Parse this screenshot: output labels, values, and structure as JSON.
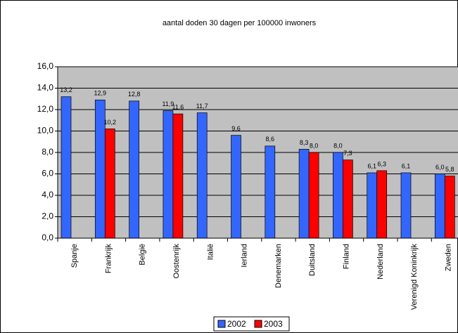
{
  "chart_data": {
    "type": "bar",
    "title": "aantal doden 30 dagen per 100000 inwoners",
    "categories": [
      "Spanje",
      "Frankrijk",
      "België",
      "Oostenrijk",
      "Italië",
      "Ierland",
      "Denemarken",
      "Duitsland",
      "Finland",
      "Nederland",
      "Verenigd Koninkrijk",
      "Zweden"
    ],
    "series": [
      {
        "name": "2002",
        "color": "#3366ff",
        "values": [
          13.2,
          12.9,
          12.8,
          11.9,
          11.7,
          9.6,
          8.6,
          8.3,
          8.0,
          6.1,
          6.1,
          6.0
        ],
        "value_labels": [
          "13,2",
          "12,9",
          "12,8",
          "11,9",
          "11,7",
          "9,6",
          "8,6",
          "8,3",
          "8,0",
          "6,1",
          "6,1",
          "6,0"
        ]
      },
      {
        "name": "2003",
        "color": "#ff0000",
        "values": [
          null,
          10.2,
          null,
          11.6,
          null,
          null,
          null,
          8.0,
          7.3,
          6.3,
          null,
          5.8
        ],
        "value_labels": [
          null,
          "10,2",
          null,
          "11,6",
          null,
          null,
          null,
          "8,0",
          "7,3",
          "6,3",
          null,
          "5,8"
        ]
      }
    ],
    "ylim": [
      0,
      16
    ],
    "yticks": [
      {
        "value": 0,
        "label": "0,0"
      },
      {
        "value": 2,
        "label": "2,0"
      },
      {
        "value": 4,
        "label": "4,0"
      },
      {
        "value": 6,
        "label": "6,0"
      },
      {
        "value": 8,
        "label": "8,0"
      },
      {
        "value": 10,
        "label": "10,0"
      },
      {
        "value": 12,
        "label": "12,0"
      },
      {
        "value": 14,
        "label": "14,0"
      },
      {
        "value": 16,
        "label": "16,0"
      }
    ],
    "grid": true,
    "legend": "bottom",
    "plot_background": "#c0c0c0"
  }
}
